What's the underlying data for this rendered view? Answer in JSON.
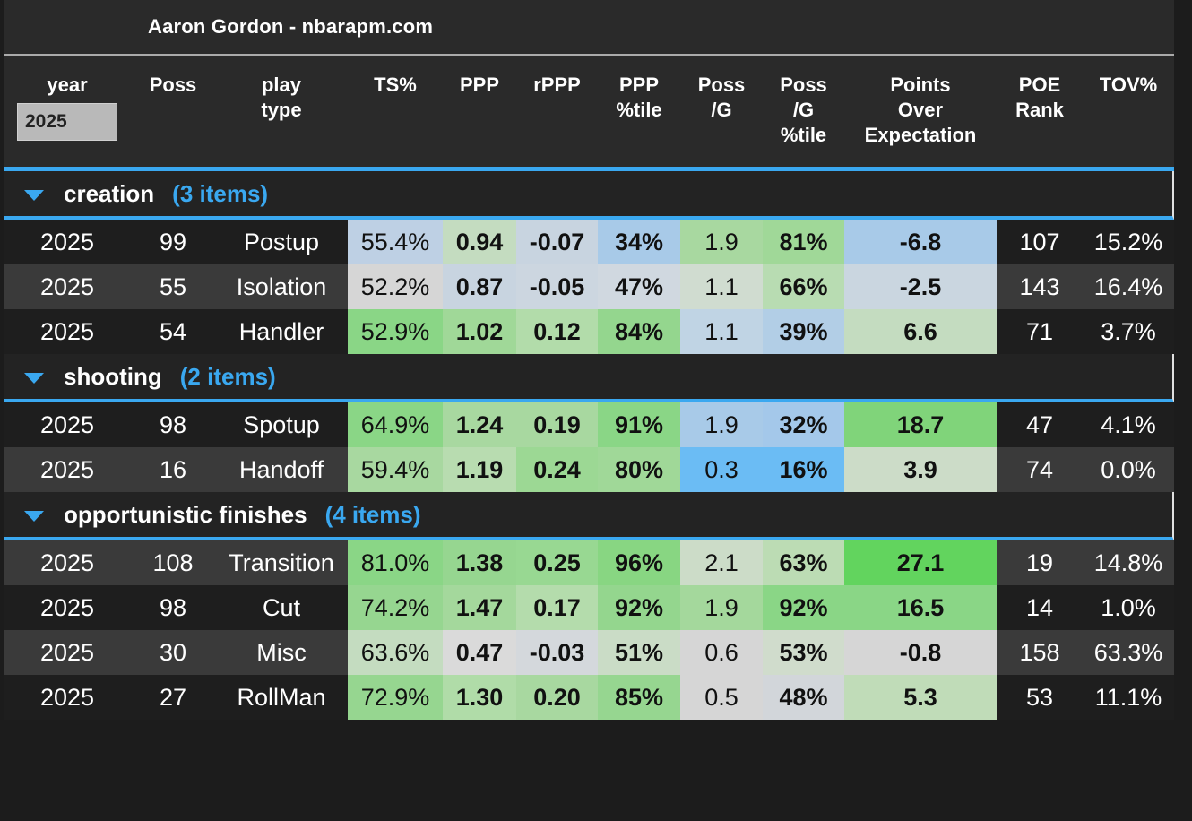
{
  "title": "Aaron Gordon - nbarapm.com",
  "headers": {
    "year": "year",
    "poss": "Poss",
    "play_type": [
      "play",
      "type"
    ],
    "ts": "TS%",
    "ppp": "PPP",
    "rppp": "rPPP",
    "ppp_pct": [
      "PPP",
      "%tile"
    ],
    "poss_g": [
      "Poss",
      "/G"
    ],
    "poss_g_pct": [
      "Poss",
      "/G",
      "%tile"
    ],
    "poe": [
      "Points",
      "Over",
      "Expectation"
    ],
    "poe_rank": [
      "POE",
      "Rank"
    ],
    "tov": "TOV%"
  },
  "year_filter": {
    "value": "2025",
    "placeholder": ""
  },
  "colors": {
    "accent": "#3aa8f0",
    "green_strong": "#62d45e",
    "green": "#8ad686",
    "green_light": "#a8d8a0",
    "green_pale": "#c4dcc0",
    "neutral": "#d6d6d6",
    "blue_pale": "#bed0e4",
    "blue_light": "#a8cae8",
    "blue": "#6bbcf4"
  },
  "groups": [
    {
      "name": "creation",
      "count_label": "(3 items)",
      "rows": [
        {
          "year": "2025",
          "poss": "99",
          "play_type": "Postup",
          "ts": "55.4%",
          "ppp": "0.94",
          "rppp": "-0.07",
          "ppp_pct": "34%",
          "poss_g": "1.9",
          "poss_g_pct": "81%",
          "poe": "-6.8",
          "poe_rank": "107",
          "tov": "15.2%",
          "colors": {
            "ts": "#bed0e4",
            "ppp": "#c4dcc0",
            "rppp": "#c8d4e0",
            "ppp_pct": "#a8cae8",
            "poss_g": "#a8d8a0",
            "poss_g_pct": "#a0d898",
            "poe": "#a8cae8"
          }
        },
        {
          "year": "2025",
          "poss": "55",
          "play_type": "Isolation",
          "ts": "52.2%",
          "ppp": "0.87",
          "rppp": "-0.05",
          "ppp_pct": "47%",
          "poss_g": "1.1",
          "poss_g_pct": "66%",
          "poe": "-2.5",
          "poe_rank": "143",
          "tov": "16.4%",
          "colors": {
            "ts": "#d6d6d6",
            "ppp": "#c8d4e0",
            "rppp": "#ccd6e0",
            "ppp_pct": "#d0d8e0",
            "poss_g": "#d0dcd0",
            "poss_g_pct": "#b8dcb2",
            "poe": "#cad6e0"
          }
        },
        {
          "year": "2025",
          "poss": "54",
          "play_type": "Handler",
          "ts": "52.9%",
          "ppp": "1.02",
          "rppp": "0.12",
          "ppp_pct": "84%",
          "poss_g": "1.1",
          "poss_g_pct": "39%",
          "poe": "6.6",
          "poe_rank": "71",
          "tov": "3.7%",
          "colors": {
            "ts": "#8ad686",
            "ppp": "#a0d898",
            "rppp": "#b2dcaa",
            "ppp_pct": "#94d68e",
            "poss_g": "#c0d4e4",
            "poss_g_pct": "#b2cee6",
            "poe": "#c4dcc0"
          }
        }
      ]
    },
    {
      "name": "shooting",
      "count_label": "(2 items)",
      "rows": [
        {
          "year": "2025",
          "poss": "98",
          "play_type": "Spotup",
          "ts": "64.9%",
          "ppp": "1.24",
          "rppp": "0.19",
          "ppp_pct": "91%",
          "poss_g": "1.9",
          "poss_g_pct": "32%",
          "poe": "18.7",
          "poe_rank": "47",
          "tov": "4.1%",
          "colors": {
            "ts": "#8ad686",
            "ppp": "#a8d8a0",
            "rppp": "#a8d8a0",
            "ppp_pct": "#8ad686",
            "poss_g": "#a8cae8",
            "poss_g_pct": "#a4c8ea",
            "poe": "#80d47a"
          }
        },
        {
          "year": "2025",
          "poss": "16",
          "play_type": "Handoff",
          "ts": "59.4%",
          "ppp": "1.19",
          "rppp": "0.24",
          "ppp_pct": "80%",
          "poss_g": "0.3",
          "poss_g_pct": "16%",
          "poe": "3.9",
          "poe_rank": "74",
          "tov": "0.0%",
          "colors": {
            "ts": "#a8d8a0",
            "ppp": "#b8dcb0",
            "rppp": "#9cd894",
            "ppp_pct": "#a0d898",
            "poss_g": "#6bbcf4",
            "poss_g_pct": "#6bbcf4",
            "poe": "#ccdcc8"
          }
        }
      ]
    },
    {
      "name": "opportunistic finishes",
      "count_label": "(4 items)",
      "rows": [
        {
          "year": "2025",
          "poss": "108",
          "play_type": "Transition",
          "ts": "81.0%",
          "ppp": "1.38",
          "rppp": "0.25",
          "ppp_pct": "96%",
          "poss_g": "2.1",
          "poss_g_pct": "63%",
          "poe": "27.1",
          "poe_rank": "19",
          "tov": "14.8%",
          "colors": {
            "ts": "#8ad686",
            "ppp": "#96d690",
            "rppp": "#98d892",
            "ppp_pct": "#88d682",
            "poss_g": "#ccdcc8",
            "poss_g_pct": "#bcdcb4",
            "poe": "#62d45e"
          }
        },
        {
          "year": "2025",
          "poss": "98",
          "play_type": "Cut",
          "ts": "74.2%",
          "ppp": "1.47",
          "rppp": "0.17",
          "ppp_pct": "92%",
          "poss_g": "1.9",
          "poss_g_pct": "92%",
          "poe": "16.5",
          "poe_rank": "14",
          "tov": "1.0%",
          "colors": {
            "ts": "#96d690",
            "ppp": "#a4d89c",
            "rppp": "#b4dcac",
            "ppp_pct": "#94d68e",
            "poss_g": "#a4d89c",
            "poss_g_pct": "#8ad686",
            "poe": "#8ad686"
          }
        },
        {
          "year": "2025",
          "poss": "30",
          "play_type": "Misc",
          "ts": "63.6%",
          "ppp": "0.47",
          "rppp": "-0.03",
          "ppp_pct": "51%",
          "poss_g": "0.6",
          "poss_g_pct": "53%",
          "poe": "-0.8",
          "poe_rank": "158",
          "tov": "63.3%",
          "colors": {
            "ts": "#c4dcc0",
            "ppp": "#dadada",
            "rppp": "#d4d8dc",
            "ppp_pct": "#cadcc6",
            "poss_g": "#d6d6d6",
            "poss_g_pct": "#d0dccc",
            "poe": "#d6d6d6"
          }
        },
        {
          "year": "2025",
          "poss": "27",
          "play_type": "RollMan",
          "ts": "72.9%",
          "ppp": "1.30",
          "rppp": "0.20",
          "ppp_pct": "85%",
          "poss_g": "0.5",
          "poss_g_pct": "48%",
          "poe": "5.3",
          "poe_rank": "53",
          "tov": "11.1%",
          "colors": {
            "ts": "#96d690",
            "ppp": "#b0dca8",
            "rppp": "#a8d8a0",
            "ppp_pct": "#96d690",
            "poss_g": "#d6d6d6",
            "poss_g_pct": "#d2d6da",
            "poe": "#c0dcb8"
          }
        }
      ]
    }
  ]
}
